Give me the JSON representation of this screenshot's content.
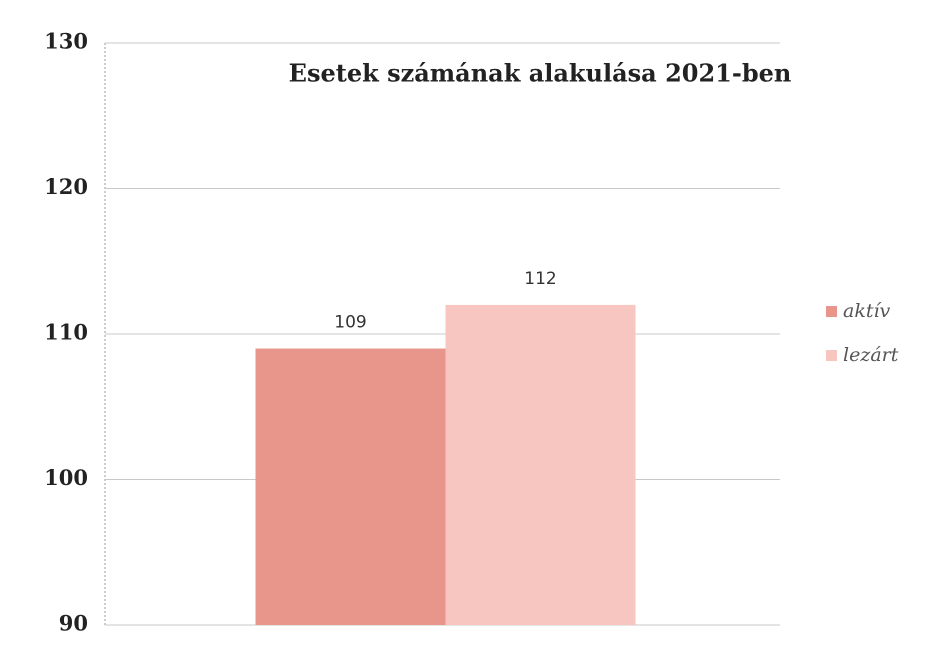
{
  "chart_data": {
    "type": "bar",
    "title": "Esetek számának alakulása 2021-ben",
    "categories": [
      null
    ],
    "series": [
      {
        "name": "aktív",
        "color": "#e8968b",
        "values": [
          109
        ]
      },
      {
        "name": "lezárt",
        "color": "#f8c6c1",
        "values": [
          112
        ]
      }
    ],
    "ylim": [
      90,
      130
    ],
    "yticks": [
      90,
      100,
      110,
      120,
      130
    ],
    "grid": true,
    "legend": "right"
  }
}
